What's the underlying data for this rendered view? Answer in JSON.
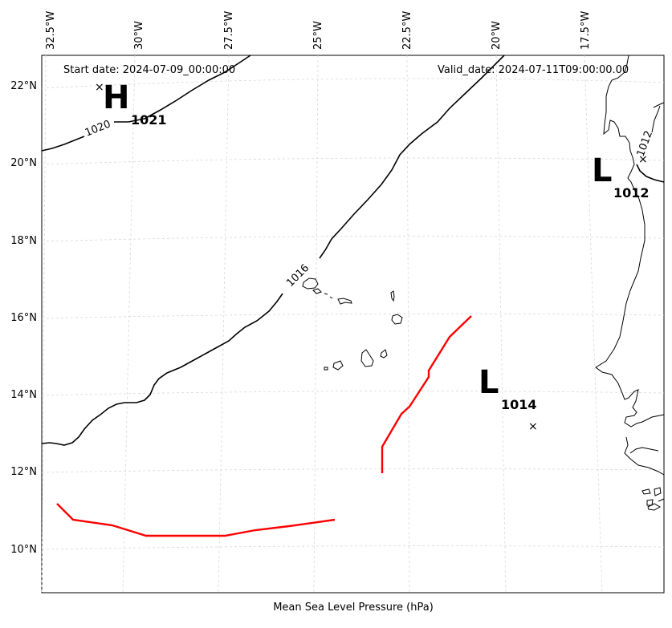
{
  "map": {
    "start_date": "Start date: 2024-07-09_00:00:00",
    "valid_date": "Valid_date: 2024-07-11T09:00:00.00",
    "xlabel": "Mean Sea Level Pressure (hPa)",
    "lon_ticks": [
      "32.5°W",
      "30°W",
      "27.5°W",
      "25°W",
      "22.5°W",
      "20°W",
      "17.5°W"
    ],
    "lat_ticks": [
      "22°N",
      "20°N",
      "18°N",
      "16°N",
      "14°N",
      "12°N",
      "10°N"
    ],
    "isobar_labels": [
      "1020",
      "1016",
      "1012"
    ],
    "pressure_centers": [
      {
        "letter": "H",
        "value": "1021",
        "lon": -31.0,
        "lat": 22.0
      },
      {
        "letter": "L",
        "value": "1014",
        "lon": -19.3,
        "lat": 13.2
      },
      {
        "letter": "L",
        "value": "1012",
        "lon": -16.4,
        "lat": 20.0
      }
    ],
    "colors": {
      "isobar": "#000000",
      "track": "#ff0000",
      "grid": "#d0d0d0"
    }
  }
}
